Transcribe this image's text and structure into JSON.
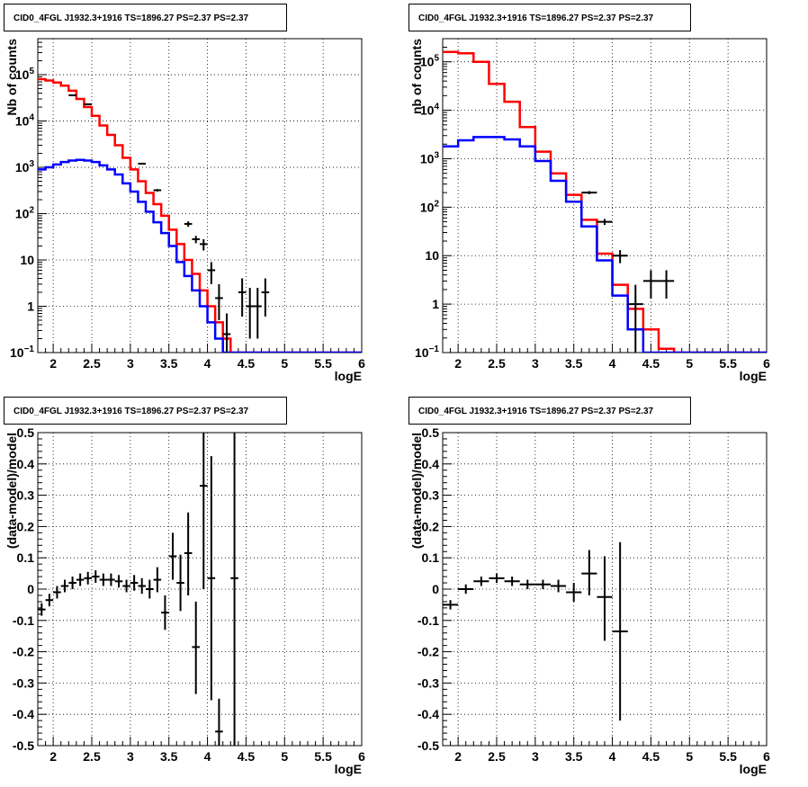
{
  "chart_data": [
    {
      "type": "line",
      "title": "CID0_4FGL J1932.3+1916 TS=1896.27 PS=2.37 PS=2.37",
      "xlabel": "logE",
      "ylabel": "Nb of counts",
      "xlim": [
        1.8,
        6
      ],
      "ylim": [
        0.1,
        600000
      ],
      "yscale": "log",
      "grid": true,
      "x_ticks": [
        "2",
        "2.5",
        "3",
        "3.5",
        "4",
        "4.5",
        "5",
        "5.5",
        "6"
      ],
      "y_ticks": [
        {
          "value": 0.1,
          "base": "10",
          "exp": "−1"
        },
        {
          "value": 1,
          "label": "1"
        },
        {
          "value": 10,
          "label": "10"
        },
        {
          "value": 100,
          "base": "10",
          "exp": "2"
        },
        {
          "value": 1000,
          "base": "10",
          "exp": "3"
        },
        {
          "value": 10000,
          "base": "10",
          "exp": "4"
        },
        {
          "value": 100000,
          "base": "10",
          "exp": "5"
        }
      ],
      "bin_edges": [
        1.8,
        1.9,
        2.0,
        2.1,
        2.2,
        2.3,
        2.4,
        2.5,
        2.6,
        2.7,
        2.8,
        2.9,
        3.0,
        3.1,
        3.2,
        3.3,
        3.4,
        3.5,
        3.6,
        3.7,
        3.8,
        3.9,
        4.0,
        4.1,
        4.2,
        4.3,
        4.4,
        4.5,
        4.6,
        4.7,
        4.8,
        4.9,
        5.0,
        5.1,
        5.2,
        5.3,
        5.4,
        5.5,
        5.6,
        5.7,
        5.8,
        5.9,
        6.0
      ],
      "series": [
        {
          "color": "#ff0000",
          "values": [
            80000,
            75000,
            68000,
            58000,
            45000,
            30000,
            20000,
            13000,
            8000,
            5000,
            3000,
            1600,
            900,
            500,
            280,
            160,
            90,
            45,
            22,
            10,
            5,
            2.2,
            1.0,
            0.45,
            0.2,
            0.1,
            0.1,
            0.1,
            0.1,
            0.1,
            0.1,
            0.1,
            0.1,
            0.1,
            0.1,
            0.1,
            0.1,
            0.1,
            0.1,
            0.1,
            0.1,
            0.1
          ]
        },
        {
          "color": "#0000ff",
          "values": [
            900,
            1000,
            1150,
            1300,
            1400,
            1450,
            1400,
            1300,
            1100,
            900,
            700,
            450,
            300,
            180,
            110,
            65,
            38,
            20,
            9,
            4.5,
            2.2,
            1.0,
            0.45,
            0.2,
            0.1,
            0.1,
            0.1,
            0.1,
            0.1,
            0.1,
            0.1,
            0.1,
            0.1,
            0.1,
            0.1,
            0.1,
            0.1,
            0.1,
            0.1,
            0.1,
            0.1,
            0.1
          ]
        }
      ],
      "data_points": [
        {
          "x": 2.25,
          "y": 36000,
          "xerr": 0.05,
          "ylo": 35800,
          "yhi": 36200
        },
        {
          "x": 2.45,
          "y": 23000,
          "xerr": 0.05,
          "ylo": 22800,
          "yhi": 23200
        },
        {
          "x": 3.15,
          "y": 1200,
          "xerr": 0.05,
          "ylo": 1160,
          "yhi": 1240
        },
        {
          "x": 3.35,
          "y": 320,
          "xerr": 0.05,
          "ylo": 300,
          "yhi": 340
        },
        {
          "x": 3.75,
          "y": 60,
          "xerr": 0.05,
          "ylo": 52,
          "yhi": 68
        },
        {
          "x": 3.85,
          "y": 28,
          "xerr": 0.05,
          "ylo": 23,
          "yhi": 33
        },
        {
          "x": 3.95,
          "y": 22,
          "xerr": 0.05,
          "ylo": 16,
          "yhi": 28
        },
        {
          "x": 4.05,
          "y": 6,
          "xerr": 0.05,
          "ylo": 3,
          "yhi": 9
        },
        {
          "x": 4.15,
          "y": 1.5,
          "xerr": 0.05,
          "ylo": 0.5,
          "yhi": 3
        },
        {
          "x": 4.25,
          "y": 0.25,
          "xerr": 0.05,
          "ylo": 0.1,
          "yhi": 0.7
        },
        {
          "x": 4.45,
          "y": 2,
          "xerr": 0.05,
          "ylo": 0.6,
          "yhi": 4
        },
        {
          "x": 4.55,
          "y": 1,
          "xerr": 0.05,
          "ylo": 0.2,
          "yhi": 2.5
        },
        {
          "x": 4.65,
          "y": 1,
          "xerr": 0.05,
          "ylo": 0.2,
          "yhi": 2.5
        },
        {
          "x": 4.75,
          "y": 2,
          "xerr": 0.05,
          "ylo": 0.6,
          "yhi": 4
        }
      ]
    },
    {
      "type": "line",
      "title": "CID0_4FGL J1932.3+1916 TS=1896.27 PS=2.37 PS=2.37",
      "xlabel": "logE",
      "ylabel": "nb of counts",
      "xlim": [
        1.8,
        6
      ],
      "ylim": [
        0.1,
        300000
      ],
      "yscale": "log",
      "grid": true,
      "x_ticks": [
        "2",
        "2.5",
        "3",
        "3.5",
        "4",
        "4.5",
        "5",
        "5.5",
        "6"
      ],
      "y_ticks": [
        {
          "value": 0.1,
          "base": "10",
          "exp": "−1"
        },
        {
          "value": 1,
          "label": "1"
        },
        {
          "value": 10,
          "label": "10"
        },
        {
          "value": 100,
          "base": "10",
          "exp": "2"
        },
        {
          "value": 1000,
          "base": "10",
          "exp": "3"
        },
        {
          "value": 10000,
          "base": "10",
          "exp": "4"
        },
        {
          "value": 100000,
          "base": "10",
          "exp": "5"
        }
      ],
      "bin_edges": [
        1.8,
        2.0,
        2.2,
        2.4,
        2.6,
        2.8,
        3.0,
        3.2,
        3.4,
        3.6,
        3.8,
        4.0,
        4.2,
        4.4,
        4.6,
        4.8,
        5.0,
        5.2,
        5.4,
        5.6,
        5.8,
        6.0
      ],
      "series": [
        {
          "color": "#ff0000",
          "values": [
            160000,
            150000,
            100000,
            35000,
            15000,
            4500,
            1400,
            500,
            180,
            55,
            11,
            2.5,
            0.8,
            0.3,
            0.12,
            0.1,
            0.1,
            0.1,
            0.1,
            0.1,
            0.1
          ]
        },
        {
          "color": "#0000ff",
          "values": [
            1800,
            2400,
            2800,
            2800,
            2500,
            1800,
            900,
            350,
            130,
            40,
            8,
            1.5,
            0.3,
            0.1,
            0.1,
            0.1,
            0.1,
            0.1,
            0.1,
            0.1,
            0.1
          ]
        }
      ],
      "data_points": [
        {
          "x": 3.7,
          "y": 200,
          "xerr": 0.1,
          "ylo": 185,
          "yhi": 215
        },
        {
          "x": 3.9,
          "y": 50,
          "xerr": 0.1,
          "ylo": 43,
          "yhi": 57
        },
        {
          "x": 4.1,
          "y": 10,
          "xerr": 0.1,
          "ylo": 7,
          "yhi": 13
        },
        {
          "x": 4.3,
          "y": 1,
          "xerr": 0.1,
          "ylo": 0.1,
          "yhi": 2.5
        },
        {
          "x": 4.5,
          "y": 3,
          "xerr": 0.1,
          "ylo": 1.3,
          "yhi": 5
        },
        {
          "x": 4.7,
          "y": 3,
          "xerr": 0.1,
          "ylo": 1.3,
          "yhi": 5
        }
      ]
    },
    {
      "type": "scatter",
      "title": "CID0_4FGL J1932.3+1916 TS=1896.27 PS=2.37 PS=2.37",
      "xlabel": "logE",
      "ylabel": "(data-model)/model",
      "xlim": [
        1.8,
        6
      ],
      "ylim": [
        -0.5,
        0.5
      ],
      "grid": true,
      "x_ticks": [
        "2",
        "2.5",
        "3",
        "3.5",
        "4",
        "4.5",
        "5",
        "5.5",
        "6"
      ],
      "y_ticks": [
        "-0.5",
        "-0.4",
        "-0.3",
        "-0.2",
        "-0.1",
        "0",
        "0.1",
        "0.2",
        "0.3",
        "0.4",
        "0.5"
      ],
      "points": [
        {
          "x": 1.85,
          "y": -0.065,
          "xerr": 0.05,
          "ylo": -0.085,
          "yhi": -0.045
        },
        {
          "x": 1.95,
          "y": -0.035,
          "xerr": 0.05,
          "ylo": -0.055,
          "yhi": -0.015
        },
        {
          "x": 2.05,
          "y": -0.01,
          "xerr": 0.05,
          "ylo": -0.03,
          "yhi": 0.01
        },
        {
          "x": 2.15,
          "y": 0.01,
          "xerr": 0.05,
          "ylo": -0.01,
          "yhi": 0.03
        },
        {
          "x": 2.25,
          "y": 0.02,
          "xerr": 0.05,
          "ylo": 0.0,
          "yhi": 0.04
        },
        {
          "x": 2.35,
          "y": 0.03,
          "xerr": 0.05,
          "ylo": 0.01,
          "yhi": 0.05
        },
        {
          "x": 2.45,
          "y": 0.035,
          "xerr": 0.05,
          "ylo": 0.015,
          "yhi": 0.055
        },
        {
          "x": 2.55,
          "y": 0.04,
          "xerr": 0.05,
          "ylo": 0.02,
          "yhi": 0.06
        },
        {
          "x": 2.65,
          "y": 0.03,
          "xerr": 0.05,
          "ylo": 0.01,
          "yhi": 0.05
        },
        {
          "x": 2.75,
          "y": 0.03,
          "xerr": 0.05,
          "ylo": 0.01,
          "yhi": 0.05
        },
        {
          "x": 2.85,
          "y": 0.025,
          "xerr": 0.05,
          "ylo": 0.005,
          "yhi": 0.045
        },
        {
          "x": 2.95,
          "y": 0.01,
          "xerr": 0.05,
          "ylo": -0.01,
          "yhi": 0.03
        },
        {
          "x": 3.05,
          "y": 0.02,
          "xerr": 0.05,
          "ylo": -0.005,
          "yhi": 0.045
        },
        {
          "x": 3.15,
          "y": 0.01,
          "xerr": 0.05,
          "ylo": -0.015,
          "yhi": 0.035
        },
        {
          "x": 3.25,
          "y": 0.0,
          "xerr": 0.05,
          "ylo": -0.03,
          "yhi": 0.03
        },
        {
          "x": 3.35,
          "y": 0.03,
          "xerr": 0.05,
          "ylo": -0.01,
          "yhi": 0.07
        },
        {
          "x": 3.45,
          "y": -0.075,
          "xerr": 0.05,
          "ylo": -0.13,
          "yhi": -0.02
        },
        {
          "x": 3.55,
          "y": 0.105,
          "xerr": 0.05,
          "ylo": 0.03,
          "yhi": 0.18
        },
        {
          "x": 3.65,
          "y": 0.02,
          "xerr": 0.05,
          "ylo": -0.07,
          "yhi": 0.11
        },
        {
          "x": 3.75,
          "y": 0.115,
          "xerr": 0.05,
          "ylo": -0.02,
          "yhi": 0.245
        },
        {
          "x": 3.85,
          "y": -0.185,
          "xerr": 0.05,
          "ylo": -0.335,
          "yhi": -0.04
        },
        {
          "x": 3.95,
          "y": 0.33,
          "xerr": 0.05,
          "ylo": 0.0,
          "yhi": 0.5
        },
        {
          "x": 4.05,
          "y": 0.035,
          "xerr": 0.05,
          "ylo": -0.355,
          "yhi": 0.425
        },
        {
          "x": 4.15,
          "y": -0.455,
          "xerr": 0.05,
          "ylo": -0.5,
          "yhi": -0.35
        },
        {
          "x": 4.35,
          "y": 0.035,
          "xerr": 0.05,
          "ylo": -0.5,
          "yhi": 0.5
        }
      ]
    },
    {
      "type": "scatter",
      "title": "CID0_4FGL J1932.3+1916 TS=1896.27 PS=2.37 PS=2.37",
      "xlabel": "logE",
      "ylabel": "(data-model)/model",
      "xlim": [
        1.8,
        6
      ],
      "ylim": [
        -0.5,
        0.5
      ],
      "grid": true,
      "x_ticks": [
        "2",
        "2.5",
        "3",
        "3.5",
        "4",
        "4.5",
        "5",
        "5.5",
        "6"
      ],
      "y_ticks": [
        "-0.5",
        "-0.4",
        "-0.3",
        "-0.2",
        "-0.1",
        "0",
        "0.1",
        "0.2",
        "0.3",
        "0.4",
        "0.5"
      ],
      "points": [
        {
          "x": 1.9,
          "y": -0.05,
          "xerr": 0.1,
          "ylo": -0.065,
          "yhi": -0.035
        },
        {
          "x": 2.1,
          "y": 0.0,
          "xerr": 0.1,
          "ylo": -0.015,
          "yhi": 0.015
        },
        {
          "x": 2.3,
          "y": 0.025,
          "xerr": 0.1,
          "ylo": 0.01,
          "yhi": 0.04
        },
        {
          "x": 2.5,
          "y": 0.035,
          "xerr": 0.1,
          "ylo": 0.02,
          "yhi": 0.05
        },
        {
          "x": 2.7,
          "y": 0.025,
          "xerr": 0.1,
          "ylo": 0.01,
          "yhi": 0.04
        },
        {
          "x": 2.9,
          "y": 0.015,
          "xerr": 0.1,
          "ylo": 0.0,
          "yhi": 0.03
        },
        {
          "x": 3.1,
          "y": 0.015,
          "xerr": 0.1,
          "ylo": 0.0,
          "yhi": 0.03
        },
        {
          "x": 3.3,
          "y": 0.01,
          "xerr": 0.1,
          "ylo": -0.01,
          "yhi": 0.03
        },
        {
          "x": 3.5,
          "y": -0.01,
          "xerr": 0.1,
          "ylo": -0.04,
          "yhi": 0.02
        },
        {
          "x": 3.7,
          "y": 0.05,
          "xerr": 0.1,
          "ylo": -0.02,
          "yhi": 0.125
        },
        {
          "x": 3.9,
          "y": -0.025,
          "xerr": 0.1,
          "ylo": -0.165,
          "yhi": 0.105
        },
        {
          "x": 4.1,
          "y": -0.135,
          "xerr": 0.1,
          "ylo": -0.42,
          "yhi": 0.15
        }
      ]
    }
  ]
}
